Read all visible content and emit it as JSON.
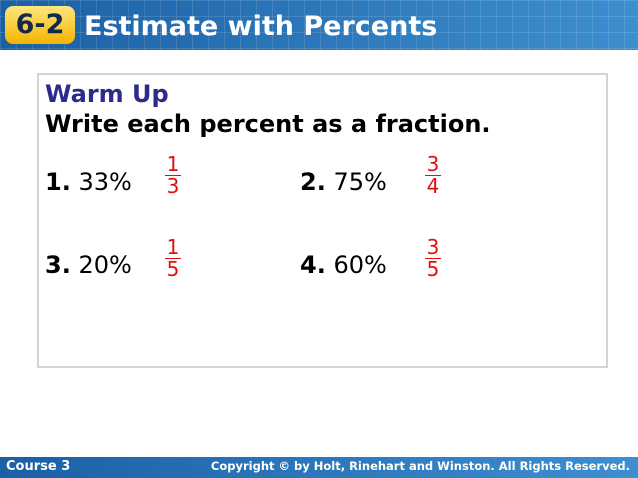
{
  "header": {
    "lesson": "6-2",
    "title": "Estimate with Percents"
  },
  "warm_up": {
    "heading": "Warm Up",
    "instruction": "Write each percent as a fraction.",
    "problems": [
      {
        "number": "1.",
        "percent": "33%",
        "answer": {
          "numerator": "1",
          "denominator": "3"
        }
      },
      {
        "number": "2.",
        "percent": "75%",
        "answer": {
          "numerator": "3",
          "denominator": "4"
        }
      },
      {
        "number": "3.",
        "percent": "20%",
        "answer": {
          "numerator": "1",
          "denominator": "5"
        }
      },
      {
        "number": "4.",
        "percent": "60%",
        "answer": {
          "numerator": "3",
          "denominator": "5"
        }
      }
    ]
  },
  "footer": {
    "course": "Course 3",
    "copyright": "Copyright © by Holt, Rinehart and Winston. All Rights Reserved."
  }
}
